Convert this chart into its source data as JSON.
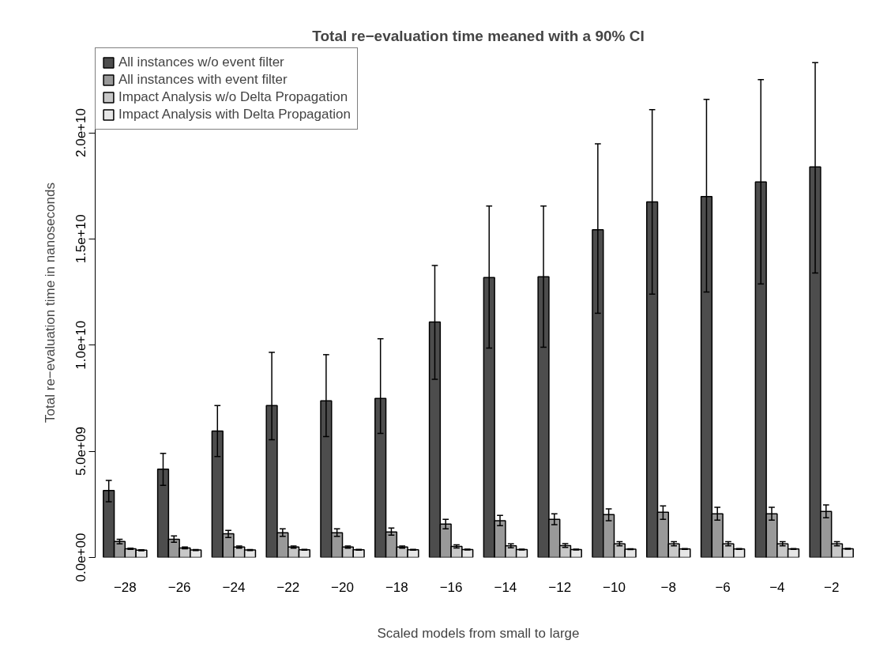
{
  "chart_data": {
    "type": "bar",
    "title": "Total re−evaluation time meaned with a 90% CI",
    "xlabel": "Scaled models from small to large",
    "ylabel": "Total re−evaluation time in nanoseconds",
    "categories": [
      "−28",
      "−26",
      "−24",
      "−22",
      "−20",
      "−18",
      "−16",
      "−14",
      "−12",
      "−10",
      "−8",
      "−6",
      "−4",
      "−2"
    ],
    "series": [
      {
        "name": "All instances w/o event filter",
        "color": "#4d4d4d",
        "values": [
          3150000000.0,
          4160000000.0,
          5950000000.0,
          7150000000.0,
          7380000000.0,
          7490000000.0,
          11090000000.0,
          13180000000.0,
          13220000000.0,
          15430000000.0,
          16740000000.0,
          17000000000.0,
          17680000000.0,
          18390000000.0
        ],
        "errors": [
          [
            2620000000.0,
            3630000000.0
          ],
          [
            3400000000.0,
            4900000000.0
          ],
          [
            4750000000.0,
            7150000000.0
          ],
          [
            5540000000.0,
            9660000000.0
          ],
          [
            5690000000.0,
            9550000000.0
          ],
          [
            5840000000.0,
            10300000000.0
          ],
          [
            8390000000.0,
            13750000000.0
          ],
          [
            9860000000.0,
            16550000000.0
          ],
          [
            9900000000.0,
            16550000000.0
          ],
          [
            11500000000.0,
            19480000000.0
          ],
          [
            12400000000.0,
            21090000000.0
          ],
          [
            12500000000.0,
            21570000000.0
          ],
          [
            12880000000.0,
            22500000000.0
          ],
          [
            13400000000.0,
            23300000000.0
          ]
        ]
      },
      {
        "name": "All instances with event filter",
        "color": "#999999",
        "values": [
          750000000.0,
          860000000.0,
          1120000000.0,
          1160000000.0,
          1160000000.0,
          1200000000.0,
          1570000000.0,
          1730000000.0,
          1800000000.0,
          2020000000.0,
          2130000000.0,
          2060000000.0,
          2060000000.0,
          2170000000.0
        ],
        "errors": [
          [
            640000000.0,
            860000000.0
          ],
          [
            720000000.0,
            1010000000.0
          ],
          [
            940000000.0,
            1270000000.0
          ],
          [
            1000000000.0,
            1350000000.0
          ],
          [
            1000000000.0,
            1350000000.0
          ],
          [
            1050000000.0,
            1390000000.0
          ],
          [
            1350000000.0,
            1800000000.0
          ],
          [
            1500000000.0,
            1980000000.0
          ],
          [
            1540000000.0,
            2060000000.0
          ],
          [
            1730000000.0,
            2290000000.0
          ],
          [
            1800000000.0,
            2430000000.0
          ],
          [
            1760000000.0,
            2360000000.0
          ],
          [
            1760000000.0,
            2360000000.0
          ],
          [
            1870000000.0,
            2470000000.0
          ]
        ]
      },
      {
        "name": "Impact Analysis w/o Delta Propagation",
        "color": "#c8c8c8",
        "values": [
          410000000.0,
          450000000.0,
          490000000.0,
          490000000.0,
          490000000.0,
          490000000.0,
          520000000.0,
          550000000.0,
          560000000.0,
          640000000.0,
          640000000.0,
          640000000.0,
          640000000.0,
          640000000.0
        ],
        "errors": [
          [
            380000000.0,
            440000000.0
          ],
          [
            410000000.0,
            490000000.0
          ],
          [
            440000000.0,
            540000000.0
          ],
          [
            440000000.0,
            540000000.0
          ],
          [
            440000000.0,
            540000000.0
          ],
          [
            440000000.0,
            540000000.0
          ],
          [
            450000000.0,
            600000000.0
          ],
          [
            460000000.0,
            640000000.0
          ],
          [
            470000000.0,
            650000000.0
          ],
          [
            550000000.0,
            740000000.0
          ],
          [
            550000000.0,
            740000000.0
          ],
          [
            550000000.0,
            740000000.0
          ],
          [
            550000000.0,
            740000000.0
          ],
          [
            550000000.0,
            740000000.0
          ]
        ]
      },
      {
        "name": "Impact Analysis with Delta Propagation",
        "color": "#e6e6e6",
        "values": [
          340000000.0,
          350000000.0,
          350000000.0,
          360000000.0,
          360000000.0,
          360000000.0,
          370000000.0,
          370000000.0,
          370000000.0,
          390000000.0,
          400000000.0,
          400000000.0,
          400000000.0,
          410000000.0
        ],
        "errors": [
          [
            320000000.0,
            360000000.0
          ],
          [
            330000000.0,
            370000000.0
          ],
          [
            330000000.0,
            370000000.0
          ],
          [
            340000000.0,
            380000000.0
          ],
          [
            340000000.0,
            380000000.0
          ],
          [
            340000000.0,
            380000000.0
          ],
          [
            350000000.0,
            390000000.0
          ],
          [
            350000000.0,
            390000000.0
          ],
          [
            350000000.0,
            390000000.0
          ],
          [
            370000000.0,
            410000000.0
          ],
          [
            380000000.0,
            420000000.0
          ],
          [
            380000000.0,
            420000000.0
          ],
          [
            380000000.0,
            420000000.0
          ],
          [
            390000000.0,
            430000000.0
          ]
        ]
      }
    ],
    "ylim": [
      0,
      24000000000.0
    ],
    "yticks": [
      {
        "value": 0,
        "label": "0.0e+00"
      },
      {
        "value": 5000000000.0,
        "label": "5.0e+09"
      },
      {
        "value": 10000000000.0,
        "label": "1.0e+10"
      },
      {
        "value": 15000000000.0,
        "label": "1.5e+10"
      },
      {
        "value": 20000000000.0,
        "label": "2.0e+10"
      }
    ],
    "legend": "top left",
    "grid": false
  }
}
